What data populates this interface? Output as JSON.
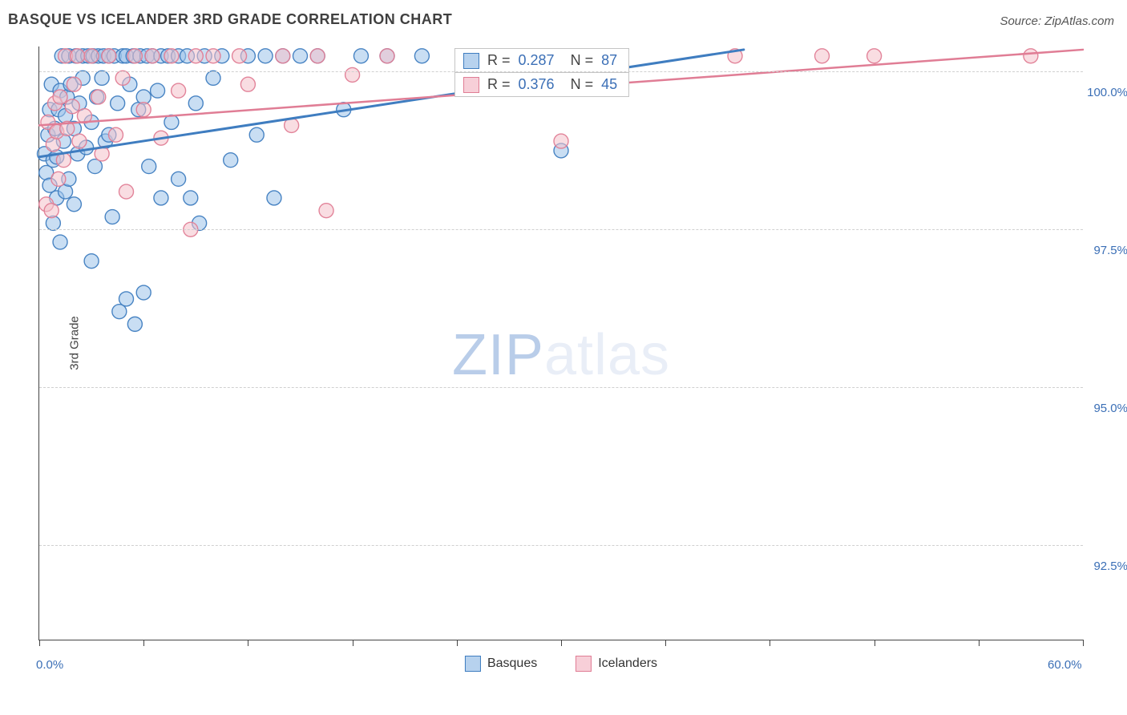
{
  "title": "BASQUE VS ICELANDER 3RD GRADE CORRELATION CHART",
  "source": "Source: ZipAtlas.com",
  "ylabel": "3rd Grade",
  "watermark_bold": "ZIP",
  "watermark_rest": "atlas",
  "chart": {
    "type": "scatter",
    "xlim": [
      0,
      60
    ],
    "ylim": [
      91,
      100.4
    ],
    "x_ticks_minor_step": 6,
    "x_labels": [
      {
        "v": 0,
        "t": "0.0%"
      },
      {
        "v": 60,
        "t": "60.0%"
      }
    ],
    "y_gridlines": [
      92.5,
      95.0,
      97.5,
      100.0
    ],
    "y_tick_labels": [
      "92.5%",
      "95.0%",
      "97.5%",
      "100.0%"
    ],
    "marker_radius": 9,
    "marker_opacity": 0.55,
    "marker_stroke_opacity": 0.95,
    "series": [
      {
        "name": "Basques",
        "fill": "#9dc2ea",
        "stroke": "#3f7dc0",
        "legend_fill": "#b7d2ee",
        "legend_stroke": "#3f7dc0",
        "trend": {
          "x0": 0,
          "y0": 98.65,
          "x1": 40.5,
          "y1": 100.35,
          "width": 3
        },
        "R": "0.287",
        "N": "87",
        "points": [
          [
            0.3,
            98.7
          ],
          [
            0.4,
            98.4
          ],
          [
            0.5,
            99.0
          ],
          [
            0.6,
            98.2
          ],
          [
            0.6,
            99.4
          ],
          [
            0.7,
            99.8
          ],
          [
            0.8,
            98.6
          ],
          [
            0.8,
            97.6
          ],
          [
            0.9,
            99.1
          ],
          [
            1.0,
            98.0
          ],
          [
            1.0,
            98.65
          ],
          [
            1.1,
            99.4
          ],
          [
            1.2,
            97.3
          ],
          [
            1.2,
            99.7
          ],
          [
            1.3,
            100.25
          ],
          [
            1.4,
            98.9
          ],
          [
            1.5,
            99.3
          ],
          [
            1.5,
            98.1
          ],
          [
            1.6,
            99.6
          ],
          [
            1.7,
            98.3
          ],
          [
            1.7,
            100.25
          ],
          [
            1.8,
            99.8
          ],
          [
            2.0,
            99.1
          ],
          [
            2.0,
            97.9
          ],
          [
            2.1,
            100.25
          ],
          [
            2.2,
            98.7
          ],
          [
            2.3,
            99.5
          ],
          [
            2.5,
            99.9
          ],
          [
            2.5,
            100.25
          ],
          [
            2.7,
            98.8
          ],
          [
            2.8,
            100.25
          ],
          [
            3.0,
            99.2
          ],
          [
            3.0,
            97.0
          ],
          [
            3.1,
            100.25
          ],
          [
            3.2,
            98.5
          ],
          [
            3.3,
            99.6
          ],
          [
            3.4,
            100.25
          ],
          [
            3.6,
            99.9
          ],
          [
            3.7,
            100.25
          ],
          [
            3.8,
            98.9
          ],
          [
            4.0,
            99.0
          ],
          [
            4.0,
            100.25
          ],
          [
            4.2,
            97.7
          ],
          [
            4.3,
            100.25
          ],
          [
            4.5,
            99.5
          ],
          [
            4.6,
            96.2
          ],
          [
            4.8,
            100.25
          ],
          [
            5.0,
            96.4
          ],
          [
            5.0,
            100.25
          ],
          [
            5.2,
            99.8
          ],
          [
            5.4,
            100.25
          ],
          [
            5.5,
            96.0
          ],
          [
            5.7,
            99.4
          ],
          [
            5.8,
            100.25
          ],
          [
            6.0,
            99.6
          ],
          [
            6.0,
            96.5
          ],
          [
            6.2,
            100.25
          ],
          [
            6.3,
            98.5
          ],
          [
            6.5,
            100.25
          ],
          [
            6.8,
            99.7
          ],
          [
            7.0,
            98.0
          ],
          [
            7.0,
            100.25
          ],
          [
            7.4,
            100.25
          ],
          [
            7.6,
            99.2
          ],
          [
            8.0,
            98.3
          ],
          [
            8.0,
            100.25
          ],
          [
            8.5,
            100.25
          ],
          [
            8.7,
            98.0
          ],
          [
            9.0,
            99.5
          ],
          [
            9.2,
            97.6
          ],
          [
            9.5,
            100.25
          ],
          [
            10.0,
            99.9
          ],
          [
            10.5,
            100.25
          ],
          [
            11.0,
            98.6
          ],
          [
            12.0,
            100.25
          ],
          [
            12.5,
            99.0
          ],
          [
            13.0,
            100.25
          ],
          [
            13.5,
            98.0
          ],
          [
            14.0,
            100.25
          ],
          [
            15.0,
            100.25
          ],
          [
            16.0,
            100.25
          ],
          [
            17.5,
            99.4
          ],
          [
            18.5,
            100.25
          ],
          [
            20.0,
            100.25
          ],
          [
            22.0,
            100.25
          ],
          [
            28.0,
            100.25
          ],
          [
            30.0,
            98.75
          ]
        ]
      },
      {
        "name": "Icelanders",
        "fill": "#f4c1cb",
        "stroke": "#e07d95",
        "legend_fill": "#f7cfd8",
        "legend_stroke": "#e07d95",
        "trend": {
          "x0": 0,
          "y0": 99.15,
          "x1": 60,
          "y1": 100.35,
          "width": 2.5
        },
        "R": "0.376",
        "N": "45",
        "points": [
          [
            0.4,
            97.9
          ],
          [
            0.5,
            99.2
          ],
          [
            0.7,
            97.8
          ],
          [
            0.8,
            98.85
          ],
          [
            0.9,
            99.5
          ],
          [
            1.0,
            99.05
          ],
          [
            1.1,
            98.3
          ],
          [
            1.2,
            99.6
          ],
          [
            1.4,
            98.6
          ],
          [
            1.5,
            100.25
          ],
          [
            1.6,
            99.1
          ],
          [
            1.9,
            99.45
          ],
          [
            2.0,
            99.8
          ],
          [
            2.2,
            100.25
          ],
          [
            2.3,
            98.9
          ],
          [
            2.6,
            99.3
          ],
          [
            3.0,
            100.25
          ],
          [
            3.4,
            99.6
          ],
          [
            3.6,
            98.7
          ],
          [
            4.0,
            100.25
          ],
          [
            4.4,
            99.0
          ],
          [
            4.8,
            99.9
          ],
          [
            5.0,
            98.1
          ],
          [
            5.5,
            100.25
          ],
          [
            6.0,
            99.4
          ],
          [
            6.5,
            100.25
          ],
          [
            7.0,
            98.95
          ],
          [
            7.6,
            100.25
          ],
          [
            8.0,
            99.7
          ],
          [
            8.7,
            97.5
          ],
          [
            9.0,
            100.25
          ],
          [
            10.0,
            100.25
          ],
          [
            11.5,
            100.25
          ],
          [
            12.0,
            99.8
          ],
          [
            14.0,
            100.25
          ],
          [
            14.5,
            99.15
          ],
          [
            16.0,
            100.25
          ],
          [
            16.5,
            97.8
          ],
          [
            18.0,
            99.95
          ],
          [
            20.0,
            100.25
          ],
          [
            30.0,
            98.9
          ],
          [
            40.0,
            100.25
          ],
          [
            45.0,
            100.25
          ],
          [
            48.0,
            100.25
          ],
          [
            57.0,
            100.25
          ]
        ]
      }
    ]
  }
}
